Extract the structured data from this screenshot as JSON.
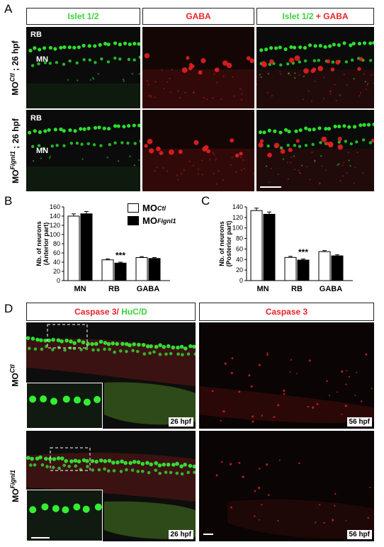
{
  "panels": {
    "A": {
      "letter": "A",
      "headers": [
        {
          "green": "Islet 1/2",
          "plus": "",
          "red": ""
        },
        {
          "green": "",
          "plus": "",
          "red": "GABA"
        },
        {
          "green": "Islet 1/2",
          "plus": " + ",
          "red": "GABA"
        }
      ],
      "rows": [
        {
          "label": "MO",
          "sup": "Ctl",
          "suffix": " ; 26 hpf"
        },
        {
          "label": "MO",
          "sup": "Fignl1",
          "suffix": " ; 26 hpf"
        }
      ],
      "labels": {
        "rb": "RB",
        "mn": "MN"
      }
    },
    "B": {
      "letter": "B"
    },
    "C": {
      "letter": "C"
    },
    "D": {
      "letter": "D",
      "header_left_red": "Caspase 3/ ",
      "header_left_green": "HuC/D",
      "header_right": "Caspase 3",
      "rows": [
        {
          "label": "MO",
          "sup": "Ctl"
        },
        {
          "label": "MO",
          "sup": "Fignl1"
        }
      ],
      "stamps": {
        "left": "26 hpf",
        "right": "56 hpf"
      }
    }
  },
  "legend": [
    {
      "label": "MO",
      "sup": "Ctl",
      "color": "#ffffff"
    },
    {
      "label": "MO",
      "sup": "Fignl1",
      "color": "#000000"
    }
  ],
  "colors": {
    "green": "#3cd23c",
    "red": "#e8232a"
  },
  "chart_data": [
    {
      "type": "bar",
      "panel": "B",
      "categories": [
        "MN",
        "RB",
        "GABA"
      ],
      "ylabel": "Nb. of neurons (Anterior part)",
      "ylim": [
        0,
        160
      ],
      "yticks": [
        0,
        20,
        40,
        60,
        80,
        100,
        120,
        140,
        160
      ],
      "significance": {
        "category": "RB",
        "label": "***"
      },
      "series": [
        {
          "name": "MO Ctl",
          "values": [
            140,
            45,
            50
          ]
        },
        {
          "name": "MO Fignl1",
          "values": [
            145,
            38,
            48
          ]
        }
      ]
    },
    {
      "type": "bar",
      "panel": "C",
      "categories": [
        "MN",
        "RB",
        "GABA"
      ],
      "ylabel": "Nb. of neurons (Posterior part)",
      "ylim": [
        0,
        140
      ],
      "yticks": [
        0,
        20,
        40,
        60,
        80,
        100,
        120,
        140
      ],
      "significance": {
        "category": "RB",
        "label": "***"
      },
      "series": [
        {
          "name": "MO Ctl",
          "values": [
            133,
            44,
            55
          ]
        },
        {
          "name": "MO Fignl1",
          "values": [
            126,
            39,
            47
          ]
        }
      ]
    }
  ]
}
